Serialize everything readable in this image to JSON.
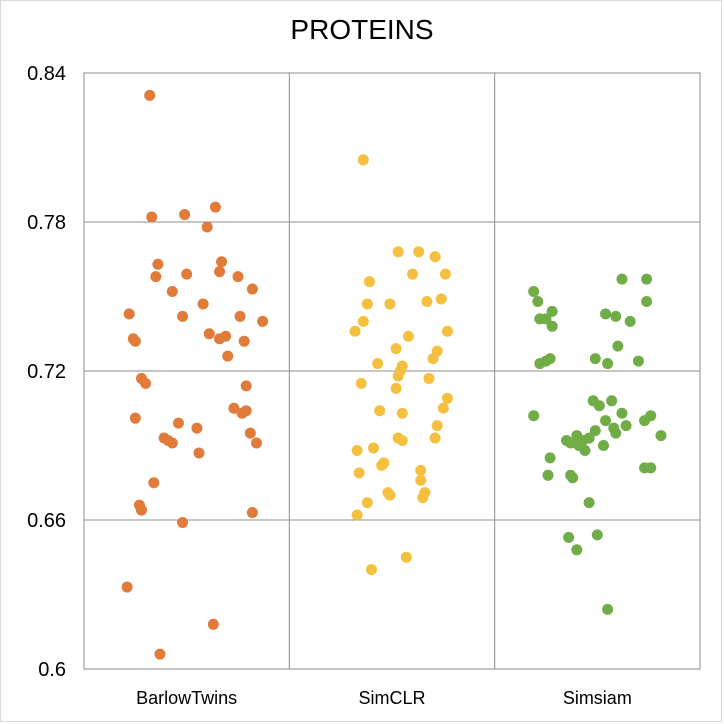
{
  "chart_data": {
    "type": "scatter",
    "title": "PROTEINS",
    "xlabel": "",
    "ylabel": "",
    "categories": [
      "BarlowTwins",
      "SimCLR",
      "Simsiam"
    ],
    "ylim": [
      0.6,
      0.84
    ],
    "yticks": [
      "0.6",
      "0.66",
      "0.72",
      "0.78",
      "0.84"
    ],
    "grid": true,
    "legend": "none",
    "series": [
      {
        "color": "#e07b39",
        "points": [
          {
            "x": 0.32,
            "y": 0.831
          },
          {
            "x": 0.33,
            "y": 0.782
          },
          {
            "x": 0.49,
            "y": 0.783
          },
          {
            "x": 0.64,
            "y": 0.786
          },
          {
            "x": 0.6,
            "y": 0.778
          },
          {
            "x": 0.36,
            "y": 0.763
          },
          {
            "x": 0.35,
            "y": 0.758
          },
          {
            "x": 0.5,
            "y": 0.759
          },
          {
            "x": 0.66,
            "y": 0.76
          },
          {
            "x": 0.67,
            "y": 0.764
          },
          {
            "x": 0.75,
            "y": 0.758
          },
          {
            "x": 0.82,
            "y": 0.753
          },
          {
            "x": 0.43,
            "y": 0.752
          },
          {
            "x": 0.58,
            "y": 0.747
          },
          {
            "x": 0.48,
            "y": 0.742
          },
          {
            "x": 0.76,
            "y": 0.742
          },
          {
            "x": 0.87,
            "y": 0.74
          },
          {
            "x": 0.22,
            "y": 0.743
          },
          {
            "x": 0.61,
            "y": 0.735
          },
          {
            "x": 0.66,
            "y": 0.733
          },
          {
            "x": 0.69,
            "y": 0.734
          },
          {
            "x": 0.78,
            "y": 0.732
          },
          {
            "x": 0.24,
            "y": 0.733
          },
          {
            "x": 0.25,
            "y": 0.732
          },
          {
            "x": 0.7,
            "y": 0.726
          },
          {
            "x": 0.28,
            "y": 0.717
          },
          {
            "x": 0.3,
            "y": 0.715
          },
          {
            "x": 0.79,
            "y": 0.714
          },
          {
            "x": 0.25,
            "y": 0.701
          },
          {
            "x": 0.73,
            "y": 0.705
          },
          {
            "x": 0.77,
            "y": 0.703
          },
          {
            "x": 0.79,
            "y": 0.704
          },
          {
            "x": 0.46,
            "y": 0.699
          },
          {
            "x": 0.55,
            "y": 0.697
          },
          {
            "x": 0.39,
            "y": 0.693
          },
          {
            "x": 0.41,
            "y": 0.692
          },
          {
            "x": 0.43,
            "y": 0.691
          },
          {
            "x": 0.81,
            "y": 0.695
          },
          {
            "x": 0.84,
            "y": 0.691
          },
          {
            "x": 0.56,
            "y": 0.687
          },
          {
            "x": 0.34,
            "y": 0.675
          },
          {
            "x": 0.27,
            "y": 0.666
          },
          {
            "x": 0.28,
            "y": 0.664
          },
          {
            "x": 0.82,
            "y": 0.663
          },
          {
            "x": 0.48,
            "y": 0.659
          },
          {
            "x": 0.21,
            "y": 0.633
          },
          {
            "x": 0.63,
            "y": 0.618
          },
          {
            "x": 0.37,
            "y": 0.606
          }
        ]
      },
      {
        "color": "#f5c040",
        "points": [
          {
            "x": 1.36,
            "y": 0.805
          },
          {
            "x": 1.53,
            "y": 0.768
          },
          {
            "x": 1.63,
            "y": 0.768
          },
          {
            "x": 1.71,
            "y": 0.766
          },
          {
            "x": 1.6,
            "y": 0.759
          },
          {
            "x": 1.76,
            "y": 0.759
          },
          {
            "x": 1.39,
            "y": 0.756
          },
          {
            "x": 1.67,
            "y": 0.748
          },
          {
            "x": 1.74,
            "y": 0.749
          },
          {
            "x": 1.38,
            "y": 0.747
          },
          {
            "x": 1.49,
            "y": 0.747
          },
          {
            "x": 1.36,
            "y": 0.74
          },
          {
            "x": 1.32,
            "y": 0.736
          },
          {
            "x": 1.58,
            "y": 0.734
          },
          {
            "x": 1.77,
            "y": 0.736
          },
          {
            "x": 1.52,
            "y": 0.729
          },
          {
            "x": 1.72,
            "y": 0.728
          },
          {
            "x": 1.7,
            "y": 0.725
          },
          {
            "x": 1.43,
            "y": 0.723
          },
          {
            "x": 1.55,
            "y": 0.722
          },
          {
            "x": 1.54,
            "y": 0.72
          },
          {
            "x": 1.53,
            "y": 0.718
          },
          {
            "x": 1.68,
            "y": 0.717
          },
          {
            "x": 1.35,
            "y": 0.715
          },
          {
            "x": 1.52,
            "y": 0.713
          },
          {
            "x": 1.77,
            "y": 0.709
          },
          {
            "x": 1.44,
            "y": 0.704
          },
          {
            "x": 1.55,
            "y": 0.703
          },
          {
            "x": 1.75,
            "y": 0.705
          },
          {
            "x": 1.72,
            "y": 0.698
          },
          {
            "x": 1.53,
            "y": 0.693
          },
          {
            "x": 1.55,
            "y": 0.692
          },
          {
            "x": 1.71,
            "y": 0.693
          },
          {
            "x": 1.33,
            "y": 0.688
          },
          {
            "x": 1.41,
            "y": 0.689
          },
          {
            "x": 1.46,
            "y": 0.683
          },
          {
            "x": 1.45,
            "y": 0.682
          },
          {
            "x": 1.34,
            "y": 0.679
          },
          {
            "x": 1.64,
            "y": 0.68
          },
          {
            "x": 1.64,
            "y": 0.676
          },
          {
            "x": 1.48,
            "y": 0.671
          },
          {
            "x": 1.49,
            "y": 0.67
          },
          {
            "x": 1.66,
            "y": 0.671
          },
          {
            "x": 1.65,
            "y": 0.669
          },
          {
            "x": 1.38,
            "y": 0.667
          },
          {
            "x": 1.33,
            "y": 0.662
          },
          {
            "x": 1.57,
            "y": 0.645
          },
          {
            "x": 1.4,
            "y": 0.64
          }
        ]
      },
      {
        "color": "#70ad47",
        "points": [
          {
            "x": 2.62,
            "y": 0.757
          },
          {
            "x": 2.74,
            "y": 0.757
          },
          {
            "x": 2.19,
            "y": 0.752
          },
          {
            "x": 2.21,
            "y": 0.748
          },
          {
            "x": 2.74,
            "y": 0.748
          },
          {
            "x": 2.28,
            "y": 0.744
          },
          {
            "x": 2.22,
            "y": 0.741
          },
          {
            "x": 2.25,
            "y": 0.741
          },
          {
            "x": 2.54,
            "y": 0.743
          },
          {
            "x": 2.59,
            "y": 0.742
          },
          {
            "x": 2.28,
            "y": 0.738
          },
          {
            "x": 2.66,
            "y": 0.74
          },
          {
            "x": 2.6,
            "y": 0.73
          },
          {
            "x": 2.22,
            "y": 0.723
          },
          {
            "x": 2.25,
            "y": 0.724
          },
          {
            "x": 2.27,
            "y": 0.725
          },
          {
            "x": 2.49,
            "y": 0.725
          },
          {
            "x": 2.55,
            "y": 0.723
          },
          {
            "x": 2.7,
            "y": 0.724
          },
          {
            "x": 2.48,
            "y": 0.708
          },
          {
            "x": 2.57,
            "y": 0.708
          },
          {
            "x": 2.19,
            "y": 0.702
          },
          {
            "x": 2.62,
            "y": 0.703
          },
          {
            "x": 2.73,
            "y": 0.7
          },
          {
            "x": 2.76,
            "y": 0.702
          },
          {
            "x": 2.51,
            "y": 0.706
          },
          {
            "x": 2.54,
            "y": 0.7
          },
          {
            "x": 2.64,
            "y": 0.698
          },
          {
            "x": 2.58,
            "y": 0.697
          },
          {
            "x": 2.49,
            "y": 0.696
          },
          {
            "x": 2.59,
            "y": 0.695
          },
          {
            "x": 2.81,
            "y": 0.694
          },
          {
            "x": 2.4,
            "y": 0.694
          },
          {
            "x": 2.43,
            "y": 0.692
          },
          {
            "x": 2.46,
            "y": 0.693
          },
          {
            "x": 2.35,
            "y": 0.692
          },
          {
            "x": 2.37,
            "y": 0.691
          },
          {
            "x": 2.41,
            "y": 0.69
          },
          {
            "x": 2.44,
            "y": 0.688
          },
          {
            "x": 2.53,
            "y": 0.69
          },
          {
            "x": 2.27,
            "y": 0.685
          },
          {
            "x": 2.73,
            "y": 0.681
          },
          {
            "x": 2.76,
            "y": 0.681
          },
          {
            "x": 2.26,
            "y": 0.678
          },
          {
            "x": 2.37,
            "y": 0.678
          },
          {
            "x": 2.38,
            "y": 0.677
          },
          {
            "x": 2.46,
            "y": 0.667
          },
          {
            "x": 2.5,
            "y": 0.654
          },
          {
            "x": 2.36,
            "y": 0.653
          },
          {
            "x": 2.4,
            "y": 0.648
          },
          {
            "x": 2.55,
            "y": 0.624
          }
        ]
      }
    ]
  }
}
